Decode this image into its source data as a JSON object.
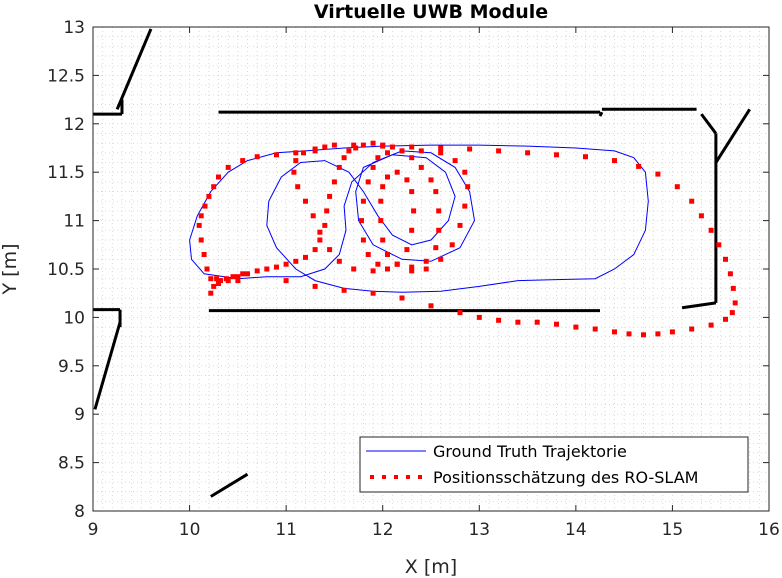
{
  "chart_data": {
    "type": "line",
    "title": "Virtuelle UWB Module",
    "xlabel": "X [m]",
    "ylabel": "Y [m]",
    "xlim": [
      9,
      16
    ],
    "ylim": [
      8,
      13
    ],
    "xticks": [
      "9",
      "10",
      "11",
      "12",
      "13",
      "14",
      "15",
      "16"
    ],
    "yticks": [
      "8",
      "8.5",
      "9",
      "9.5",
      "10",
      "10.5",
      "11",
      "11.5",
      "12",
      "12.5",
      "13"
    ],
    "grid": "minor dotted",
    "legend_position": "bottom-right",
    "colors": {
      "ground_truth": "#0000ff",
      "estimate": "#ff0000",
      "map": "#000000",
      "grid": "#d9d9d9"
    },
    "series": [
      {
        "name": "Ground Truth Trajektorie",
        "style": "line",
        "points": [
          [
            10.8,
            10.42
          ],
          [
            10.5,
            10.4
          ],
          [
            10.15,
            10.45
          ],
          [
            10.02,
            10.6
          ],
          [
            10.0,
            10.8
          ],
          [
            10.08,
            11.05
          ],
          [
            10.22,
            11.3
          ],
          [
            10.4,
            11.5
          ],
          [
            10.6,
            11.62
          ],
          [
            10.9,
            11.7
          ],
          [
            11.2,
            11.72
          ],
          [
            11.6,
            11.75
          ],
          [
            12.0,
            11.77
          ],
          [
            12.5,
            11.78
          ],
          [
            13.0,
            11.78
          ],
          [
            13.5,
            11.77
          ],
          [
            14.0,
            11.75
          ],
          [
            14.4,
            11.72
          ],
          [
            14.6,
            11.65
          ],
          [
            14.72,
            11.5
          ],
          [
            14.75,
            11.2
          ],
          [
            14.72,
            10.9
          ],
          [
            14.6,
            10.65
          ],
          [
            14.4,
            10.5
          ],
          [
            14.2,
            10.4
          ],
          [
            13.8,
            10.39
          ],
          [
            13.4,
            10.38
          ],
          [
            13.0,
            10.32
          ],
          [
            12.6,
            10.27
          ],
          [
            12.2,
            10.26
          ],
          [
            11.9,
            10.27
          ],
          [
            11.6,
            10.3
          ],
          [
            11.3,
            10.38
          ],
          [
            11.1,
            10.5
          ],
          [
            10.9,
            10.72
          ],
          [
            10.8,
            10.95
          ],
          [
            10.82,
            11.2
          ],
          [
            10.95,
            11.45
          ],
          [
            11.15,
            11.6
          ],
          [
            11.4,
            11.62
          ],
          [
            11.65,
            11.5
          ],
          [
            11.8,
            11.3
          ],
          [
            11.95,
            11.05
          ],
          [
            12.1,
            10.85
          ],
          [
            12.3,
            10.75
          ],
          [
            12.5,
            10.8
          ],
          [
            12.68,
            11.0
          ],
          [
            12.75,
            11.25
          ],
          [
            12.65,
            11.5
          ],
          [
            12.45,
            11.65
          ],
          [
            12.1,
            11.68
          ],
          [
            11.8,
            11.55
          ],
          [
            11.72,
            11.3
          ],
          [
            11.75,
            11.0
          ],
          [
            11.9,
            10.75
          ],
          [
            12.2,
            10.6
          ],
          [
            12.5,
            10.58
          ],
          [
            12.8,
            10.72
          ],
          [
            12.95,
            11.0
          ],
          [
            12.9,
            11.3
          ],
          [
            12.75,
            11.55
          ],
          [
            12.5,
            11.7
          ],
          [
            12.2,
            11.72
          ],
          [
            11.9,
            11.6
          ],
          [
            11.68,
            11.4
          ],
          [
            11.6,
            11.15
          ],
          [
            11.62,
            10.9
          ],
          [
            11.55,
            10.65
          ],
          [
            11.4,
            10.5
          ],
          [
            11.15,
            10.42
          ],
          [
            10.8,
            10.42
          ]
        ]
      },
      {
        "name": "Positionsschätzung des RO-SLAM",
        "style": "dots",
        "points": [
          [
            10.22,
            10.25
          ],
          [
            10.25,
            10.32
          ],
          [
            10.28,
            10.4
          ],
          [
            10.32,
            10.38
          ],
          [
            10.38,
            10.4
          ],
          [
            10.45,
            10.42
          ],
          [
            10.5,
            10.38
          ],
          [
            10.6,
            10.45
          ],
          [
            10.7,
            10.48
          ],
          [
            10.8,
            10.5
          ],
          [
            10.9,
            10.52
          ],
          [
            11.0,
            10.55
          ],
          [
            11.1,
            10.58
          ],
          [
            11.2,
            10.62
          ],
          [
            11.3,
            10.7
          ],
          [
            11.35,
            10.8
          ],
          [
            11.4,
            10.95
          ],
          [
            11.42,
            11.1
          ],
          [
            11.45,
            11.25
          ],
          [
            11.5,
            11.4
          ],
          [
            11.55,
            11.55
          ],
          [
            11.6,
            11.65
          ],
          [
            11.65,
            11.72
          ],
          [
            11.72,
            11.75
          ],
          [
            11.8,
            11.78
          ],
          [
            11.9,
            11.8
          ],
          [
            12.0,
            11.78
          ],
          [
            12.1,
            11.76
          ],
          [
            12.2,
            11.72
          ],
          [
            12.3,
            11.65
          ],
          [
            12.4,
            11.55
          ],
          [
            12.5,
            11.42
          ],
          [
            12.55,
            11.3
          ],
          [
            12.58,
            11.1
          ],
          [
            12.58,
            10.9
          ],
          [
            12.55,
            10.72
          ],
          [
            12.45,
            10.58
          ],
          [
            12.3,
            10.52
          ],
          [
            12.15,
            10.55
          ],
          [
            12.05,
            10.65
          ],
          [
            12.0,
            10.8
          ],
          [
            11.98,
            11.0
          ],
          [
            11.98,
            11.2
          ],
          [
            12.0,
            11.35
          ],
          [
            12.05,
            11.45
          ],
          [
            12.15,
            11.5
          ],
          [
            12.25,
            11.42
          ],
          [
            12.3,
            11.3
          ],
          [
            12.32,
            11.1
          ],
          [
            12.3,
            10.9
          ],
          [
            12.25,
            10.7
          ],
          [
            12.15,
            10.55
          ],
          [
            12.05,
            10.5
          ],
          [
            11.95,
            10.55
          ],
          [
            11.85,
            10.65
          ],
          [
            11.8,
            10.8
          ],
          [
            11.78,
            11.0
          ],
          [
            11.8,
            11.2
          ],
          [
            11.85,
            11.4
          ],
          [
            11.9,
            11.55
          ],
          [
            11.95,
            11.65
          ],
          [
            12.05,
            11.7
          ],
          [
            12.2,
            11.72
          ],
          [
            12.4,
            11.72
          ],
          [
            12.6,
            11.7
          ],
          [
            12.75,
            11.62
          ],
          [
            12.85,
            11.5
          ],
          [
            12.88,
            11.35
          ],
          [
            12.85,
            11.15
          ],
          [
            12.8,
            10.95
          ],
          [
            12.72,
            10.75
          ],
          [
            12.6,
            10.6
          ],
          [
            12.45,
            10.5
          ],
          [
            12.3,
            10.48
          ],
          [
            11.9,
            10.48
          ],
          [
            11.7,
            10.5
          ],
          [
            11.55,
            10.58
          ],
          [
            11.45,
            10.7
          ],
          [
            11.35,
            10.88
          ],
          [
            11.28,
            11.05
          ],
          [
            11.2,
            11.2
          ],
          [
            11.12,
            11.35
          ],
          [
            11.08,
            11.5
          ],
          [
            11.1,
            11.62
          ],
          [
            11.18,
            11.7
          ],
          [
            11.3,
            11.74
          ],
          [
            11.4,
            11.76
          ],
          [
            11.3,
            11.72
          ],
          [
            11.1,
            11.7
          ],
          [
            10.9,
            11.68
          ],
          [
            10.7,
            11.66
          ],
          [
            10.55,
            11.62
          ],
          [
            10.4,
            11.55
          ],
          [
            10.3,
            11.45
          ],
          [
            10.25,
            11.35
          ],
          [
            10.2,
            11.25
          ],
          [
            10.16,
            11.15
          ],
          [
            10.12,
            11.05
          ],
          [
            10.1,
            10.95
          ],
          [
            10.12,
            10.8
          ],
          [
            10.15,
            10.65
          ],
          [
            10.18,
            10.5
          ],
          [
            10.22,
            10.4
          ],
          [
            10.3,
            10.35
          ],
          [
            10.4,
            10.38
          ],
          [
            10.5,
            10.42
          ],
          [
            10.55,
            10.45
          ],
          [
            11.0,
            10.38
          ],
          [
            11.3,
            10.32
          ],
          [
            11.6,
            10.28
          ],
          [
            11.9,
            10.25
          ],
          [
            12.2,
            10.2
          ],
          [
            12.5,
            10.12
          ],
          [
            12.8,
            10.05
          ],
          [
            13.0,
            10.0
          ],
          [
            13.2,
            9.97
          ],
          [
            13.4,
            9.95
          ],
          [
            13.6,
            9.95
          ],
          [
            13.8,
            9.93
          ],
          [
            14.0,
            9.9
          ],
          [
            14.2,
            9.88
          ],
          [
            14.4,
            9.85
          ],
          [
            14.55,
            9.83
          ],
          [
            14.7,
            9.82
          ],
          [
            14.85,
            9.83
          ],
          [
            15.0,
            9.85
          ],
          [
            15.2,
            9.88
          ],
          [
            15.4,
            9.92
          ],
          [
            15.55,
            9.98
          ],
          [
            15.62,
            10.05
          ],
          [
            15.65,
            10.15
          ],
          [
            15.63,
            10.3
          ],
          [
            15.6,
            10.45
          ],
          [
            15.55,
            10.6
          ],
          [
            15.48,
            10.75
          ],
          [
            15.4,
            10.9
          ],
          [
            15.3,
            11.05
          ],
          [
            15.2,
            11.2
          ],
          [
            15.05,
            11.35
          ],
          [
            14.85,
            11.48
          ],
          [
            14.65,
            11.56
          ],
          [
            14.4,
            11.62
          ],
          [
            14.1,
            11.66
          ],
          [
            13.8,
            11.68
          ],
          [
            13.5,
            11.7
          ],
          [
            13.2,
            11.72
          ],
          [
            12.9,
            11.74
          ],
          [
            12.6,
            11.75
          ],
          [
            12.3,
            11.76
          ],
          [
            12.0,
            11.77
          ],
          [
            11.7,
            11.78
          ],
          [
            11.5,
            11.78
          ]
        ]
      }
    ]
  }
}
